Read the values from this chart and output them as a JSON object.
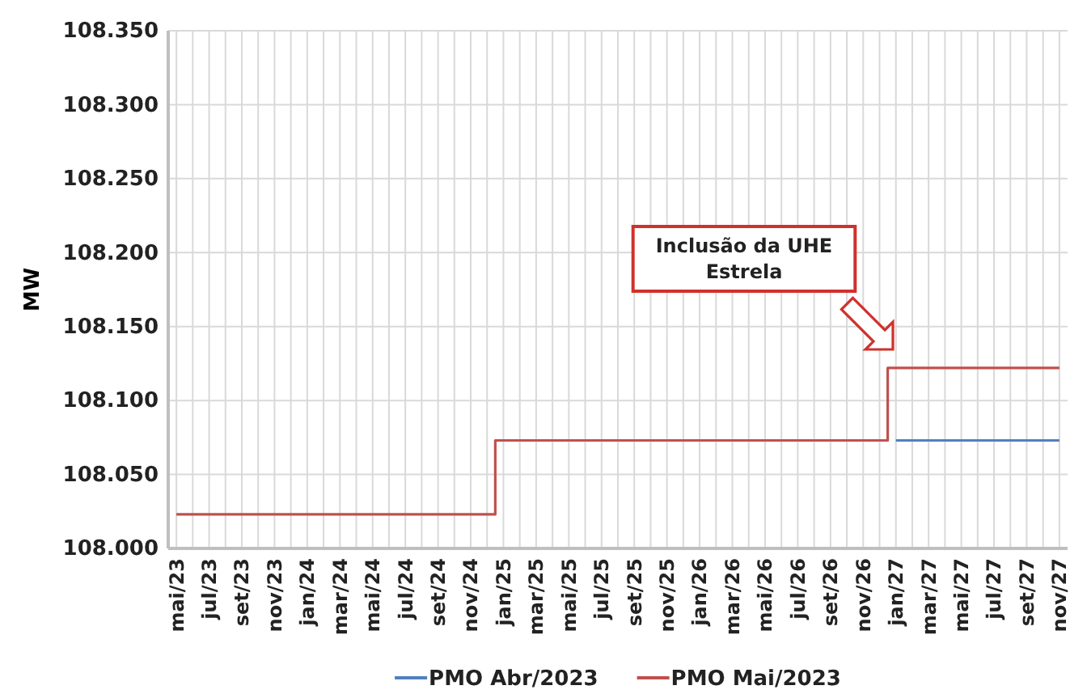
{
  "chart_data": {
    "type": "step",
    "ylabel": "MW",
    "categories": [
      "mai/23",
      null,
      "jul/23",
      null,
      "set/23",
      null,
      "nov/23",
      null,
      "jan/24",
      null,
      "mar/24",
      null,
      "mai/24",
      null,
      "jul/24",
      null,
      "set/24",
      null,
      "nov/24",
      null,
      "jan/25",
      null,
      "mar/25",
      null,
      "mai/25",
      null,
      "jul/25",
      null,
      "set/25",
      null,
      "nov/25",
      null,
      "jan/26",
      null,
      "mar/26",
      null,
      "mai/26",
      null,
      "jul/26",
      null,
      "set/26",
      null,
      "nov/26",
      null,
      "jan/27",
      null,
      "mar/27",
      null,
      "mai/27",
      null,
      "jul/27",
      null,
      "set/27",
      null,
      "nov/27"
    ],
    "series": [
      {
        "name": "PMO Abr/2023",
        "color": "#4f81bd",
        "values": [
          null,
          null,
          null,
          null,
          null,
          null,
          null,
          null,
          null,
          null,
          null,
          null,
          null,
          null,
          null,
          null,
          null,
          null,
          null,
          null,
          null,
          null,
          null,
          null,
          null,
          null,
          null,
          null,
          null,
          null,
          null,
          null,
          null,
          null,
          null,
          null,
          null,
          null,
          null,
          null,
          null,
          null,
          null,
          null,
          108073,
          108073,
          108073,
          108073,
          108073,
          108073,
          108073,
          108073,
          108073,
          108073,
          108073
        ]
      },
      {
        "name": "PMO Mai/2023",
        "color": "#c0504d",
        "values": [
          108023,
          108023,
          108023,
          108023,
          108023,
          108023,
          108023,
          108023,
          108023,
          108023,
          108023,
          108023,
          108023,
          108023,
          108023,
          108023,
          108023,
          108023,
          108023,
          108023,
          108073,
          108073,
          108073,
          108073,
          108073,
          108073,
          108073,
          108073,
          108073,
          108073,
          108073,
          108073,
          108073,
          108073,
          108073,
          108073,
          108073,
          108073,
          108073,
          108073,
          108073,
          108073,
          108073,
          108073,
          108122,
          108122,
          108122,
          108122,
          108122,
          108122,
          108122,
          108122,
          108122,
          108122,
          108122
        ]
      }
    ],
    "ylim": [
      108000,
      108350
    ],
    "yticks": [
      {
        "value": 108000,
        "label": "108.000"
      },
      {
        "value": 108050,
        "label": "108.050"
      },
      {
        "value": 108100,
        "label": "108.100"
      },
      {
        "value": 108150,
        "label": "108.150"
      },
      {
        "value": 108200,
        "label": "108.200"
      },
      {
        "value": 108250,
        "label": "108.250"
      },
      {
        "value": 108300,
        "label": "108.300"
      },
      {
        "value": 108350,
        "label": "108.350"
      }
    ],
    "grid": true,
    "legend": "bottom",
    "annotations": [
      "Inclusão da UHE Estrela"
    ]
  }
}
